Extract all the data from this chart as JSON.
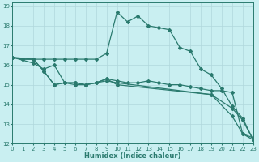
{
  "line1": {
    "x": [
      0,
      1,
      2,
      3,
      4,
      5,
      6,
      7,
      8,
      9,
      10,
      11,
      12,
      13,
      14,
      15,
      16,
      17,
      18,
      19,
      20,
      21,
      22,
      23
    ],
    "y": [
      16.4,
      16.3,
      16.3,
      16.3,
      16.3,
      16.3,
      16.3,
      16.3,
      16.3,
      16.6,
      18.7,
      18.2,
      18.5,
      18.0,
      17.9,
      17.8,
      16.9,
      16.7,
      15.8,
      15.5,
      14.8,
      13.9,
      13.3,
      12.2
    ],
    "color": "#2a7a6e",
    "marker": "D",
    "markersize": 2,
    "linewidth": 0.9
  },
  "line2": {
    "x": [
      0,
      1,
      2,
      3,
      4,
      5,
      6,
      7,
      8,
      9,
      10,
      11,
      12,
      13,
      14,
      15,
      16,
      17,
      18,
      19,
      20,
      21,
      22,
      23
    ],
    "y": [
      16.4,
      16.3,
      16.3,
      15.7,
      15.0,
      15.1,
      15.1,
      15.0,
      15.1,
      15.3,
      15.2,
      15.1,
      15.1,
      15.2,
      15.1,
      15.0,
      15.0,
      14.9,
      14.8,
      14.7,
      14.7,
      14.6,
      12.5,
      12.3
    ],
    "color": "#2a7a6e",
    "marker": "D",
    "markersize": 2,
    "linewidth": 0.9
  },
  "line3": {
    "x": [
      0,
      2,
      3,
      4,
      5,
      6,
      7,
      8,
      9,
      10,
      19,
      21,
      22,
      23
    ],
    "y": [
      16.4,
      16.3,
      15.7,
      15.0,
      15.1,
      15.0,
      15.0,
      15.1,
      15.2,
      15.1,
      14.5,
      13.8,
      13.2,
      12.2
    ],
    "color": "#2a7a6e",
    "marker": "D",
    "markersize": 2,
    "linewidth": 0.9
  },
  "line4": {
    "x": [
      0,
      2,
      3,
      4,
      5,
      6,
      7,
      8,
      9,
      10,
      19,
      21,
      22,
      23
    ],
    "y": [
      16.4,
      16.1,
      15.8,
      16.0,
      15.1,
      15.1,
      15.0,
      15.1,
      15.3,
      15.0,
      14.5,
      13.4,
      12.5,
      12.2
    ],
    "color": "#2a7a6e",
    "marker": "D",
    "markersize": 2,
    "linewidth": 0.9
  },
  "bg_color": "#c9eff1",
  "grid_color": "#b0d8dc",
  "line_color": "#2a7a6e",
  "xlabel": "Humidex (Indice chaleur)",
  "xlim": [
    0,
    23
  ],
  "ylim": [
    12,
    19.2
  ],
  "yticks": [
    12,
    13,
    14,
    15,
    16,
    17,
    18,
    19
  ],
  "xticks": [
    0,
    1,
    2,
    3,
    4,
    5,
    6,
    7,
    8,
    9,
    10,
    11,
    12,
    13,
    14,
    15,
    16,
    17,
    18,
    19,
    20,
    21,
    22,
    23
  ]
}
